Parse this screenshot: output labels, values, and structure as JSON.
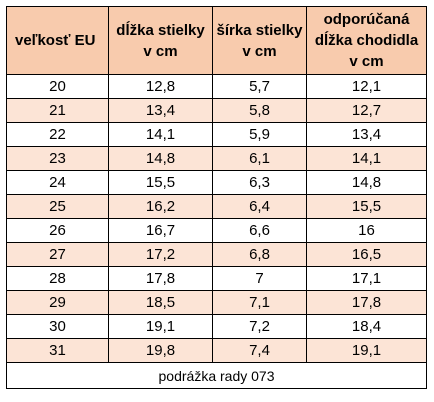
{
  "table": {
    "headers": [
      {
        "lines": [
          "veľkosť EU"
        ]
      },
      {
        "lines": [
          "dĺžka stielky",
          "v cm"
        ]
      },
      {
        "lines": [
          "šírka stielky",
          "v cm"
        ]
      },
      {
        "lines": [
          "odporúčaná",
          "dĺžka chodidla",
          "v cm"
        ]
      }
    ],
    "rows": [
      [
        "20",
        "12,8",
        "5,7",
        "12,1"
      ],
      [
        "21",
        "13,4",
        "5,8",
        "12,7"
      ],
      [
        "22",
        "14,1",
        "5,9",
        "13,4"
      ],
      [
        "23",
        "14,8",
        "6,1",
        "14,1"
      ],
      [
        "24",
        "15,5",
        "6,3",
        "14,8"
      ],
      [
        "25",
        "16,2",
        "6,4",
        "15,5"
      ],
      [
        "26",
        "16,7",
        "6,6",
        "16"
      ],
      [
        "27",
        "17,2",
        "6,8",
        "16,5"
      ],
      [
        "28",
        "17,8",
        "7",
        "17,1"
      ],
      [
        "29",
        "18,5",
        "7,1",
        "17,8"
      ],
      [
        "30",
        "19,1",
        "7,2",
        "18,4"
      ],
      [
        "31",
        "19,8",
        "7,4",
        "19,1"
      ]
    ],
    "footnote": "podrážka rady 073"
  },
  "colors": {
    "header_bg": "#f8cbad",
    "alt_row_bg": "#fce4d6",
    "row_bg": "#ffffff",
    "border": "#000000"
  }
}
